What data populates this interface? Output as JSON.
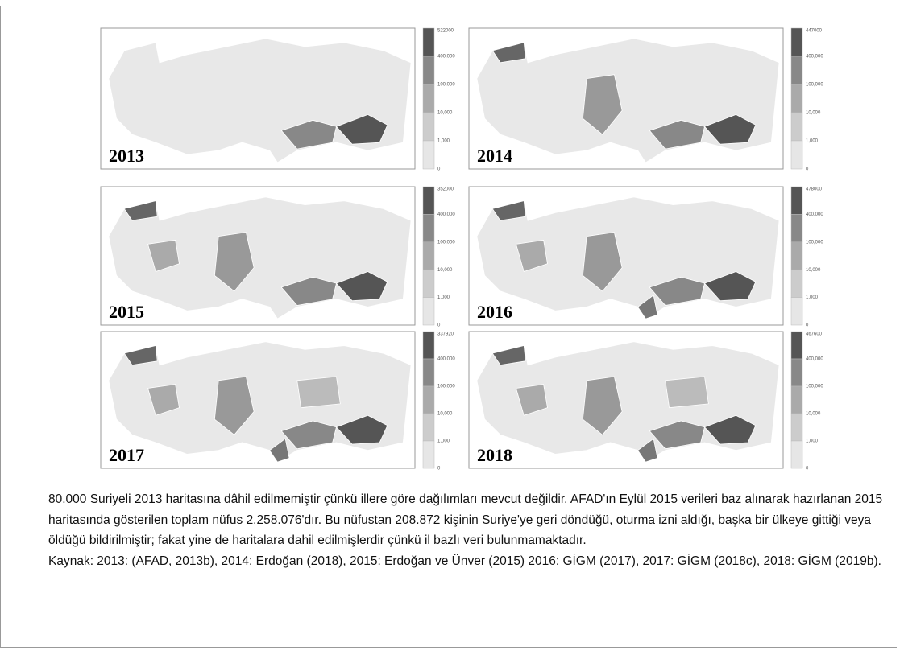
{
  "maps": [
    {
      "year": "2013",
      "legend": [
        "522000",
        "400,000",
        "100,000",
        "10,000",
        "1,000",
        "0"
      ]
    },
    {
      "year": "2014",
      "legend": [
        "447000",
        "400,000",
        "100,000",
        "10,000",
        "1,000",
        "0"
      ]
    },
    {
      "year": "2015",
      "legend": [
        "352000",
        "400,000",
        "100,000",
        "10,000",
        "1,000",
        "0"
      ]
    },
    {
      "year": "2016",
      "legend": [
        "478000",
        "400,000",
        "100,000",
        "10,000",
        "1,000",
        "0"
      ]
    },
    {
      "year": "2017",
      "legend": [
        "337920",
        "400,000",
        "100,000",
        "10,000",
        "1,000",
        "0"
      ]
    },
    {
      "year": "2018",
      "legend": [
        "467600",
        "400,000",
        "100,000",
        "10,000",
        "1,000",
        "0"
      ]
    }
  ],
  "caption": {
    "note": "80.000 Suriyeli 2013 haritasına dâhil edilmemiştir çünkü illere göre dağılımları mevcut değildir. AFAD'ın Eylül 2015 verileri baz alınarak hazırlanan 2015 haritasında gösterilen toplam nüfus 2.258.076'dır. Bu nüfustan 208.872 kişinin Suriye'ye geri döndüğü, oturma izni aldığı, başka bir ülkeye gittiği veya öldüğü bildirilmiştir; fakat yine de haritalara dahil edilmişlerdir çünkü il bazlı veri bulunmamaktadır.",
    "source": "Kaynak: 2013: (AFAD, 2013b), 2014: Erdoğan (2018), 2015: Erdoğan ve Ünver (2015) 2016: GİGM (2017), 2017: GİGM (2018c), 2018: GİGM (2019b)."
  }
}
